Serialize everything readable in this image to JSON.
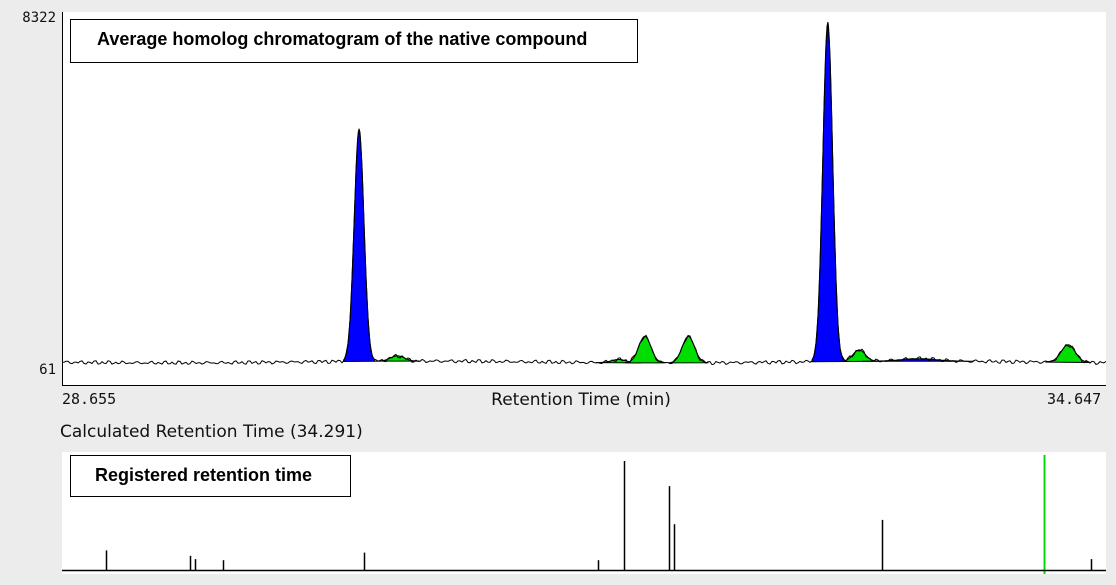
{
  "chart_data": {
    "type": "area",
    "title": "Average homolog chromatogram of the native compound",
    "xlabel": "Retention Time (min)",
    "xlim": [
      28.655,
      34.647
    ],
    "ylim": [
      61,
      8322
    ],
    "x_tick_labels": [
      "28.655",
      "34.647"
    ],
    "y_tick_labels": [
      "8322",
      "61"
    ],
    "baseline": 61,
    "peaks": [
      {
        "rt": 30.36,
        "height": 5700,
        "width": 0.028,
        "color": "#0000ff"
      },
      {
        "rt": 30.58,
        "height": 130,
        "width": 0.04,
        "color": "#00dd00"
      },
      {
        "rt": 31.85,
        "height": 80,
        "width": 0.04,
        "color": "#00dd00"
      },
      {
        "rt": 32.0,
        "height": 650,
        "width": 0.035,
        "color": "#00dd00"
      },
      {
        "rt": 32.25,
        "height": 650,
        "width": 0.035,
        "color": "#00dd00"
      },
      {
        "rt": 33.05,
        "height": 8322,
        "width": 0.028,
        "color": "#0000ff"
      },
      {
        "rt": 33.23,
        "height": 280,
        "width": 0.035,
        "color": "#00dd00"
      },
      {
        "rt": 33.57,
        "height": 60,
        "width": 0.1,
        "color": "#0000ff"
      },
      {
        "rt": 34.43,
        "height": 430,
        "width": 0.04,
        "color": "#00dd00"
      }
    ],
    "calculated_rt_label": "Calculated Retention Time (34.291)",
    "calculated_rt": 34.291,
    "registered_title": "Registered retention time",
    "registered_rt": [
      {
        "rt": 28.91,
        "rel": 0.18
      },
      {
        "rt": 29.39,
        "rel": 0.13
      },
      {
        "rt": 29.42,
        "rel": 0.1
      },
      {
        "rt": 29.58,
        "rel": 0.09
      },
      {
        "rt": 30.39,
        "rel": 0.16
      },
      {
        "rt": 31.73,
        "rel": 0.09
      },
      {
        "rt": 31.88,
        "rel": 1.0
      },
      {
        "rt": 32.14,
        "rel": 0.77
      },
      {
        "rt": 32.17,
        "rel": 0.42
      },
      {
        "rt": 33.36,
        "rel": 0.46
      },
      {
        "rt": 34.56,
        "rel": 0.1
      }
    ],
    "calculated_marker_color": "#00e000"
  }
}
